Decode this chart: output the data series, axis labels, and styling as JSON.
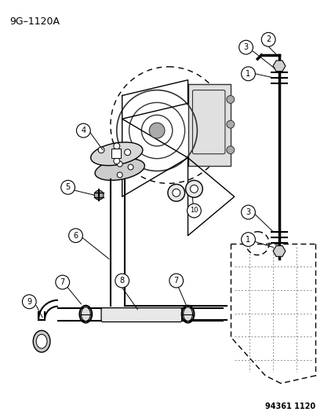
{
  "title": "9G–1120A",
  "ref_number": "94361 1120",
  "bg_color": "#ffffff",
  "fg_color": "#000000",
  "title_fontsize": 9,
  "ref_fontsize": 7,
  "label_fontsize": 7
}
